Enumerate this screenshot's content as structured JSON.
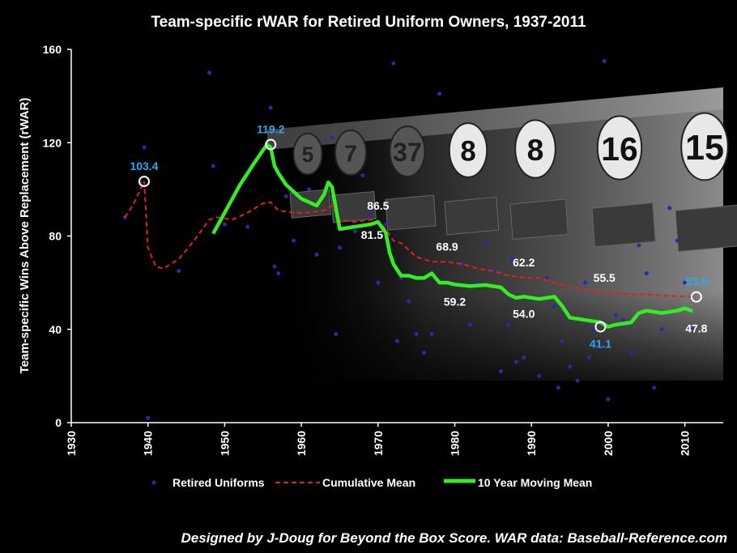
{
  "chart_data": {
    "type": "line",
    "title": "Team-specific rWAR for Retired Uniform Owners, 1937-2011",
    "xlabel": "",
    "ylabel": "Team-specific Wins Above Replacement (rWAR)",
    "xlim": [
      1930,
      2015
    ],
    "ylim": [
      0,
      160
    ],
    "x_ticks": [
      "1930",
      "1940",
      "1950",
      "1960",
      "1970",
      "1980",
      "1990",
      "2000",
      "2010"
    ],
    "y_ticks": [
      "0",
      "40",
      "80",
      "120",
      "160"
    ],
    "grid": false,
    "legend_position": "bottom",
    "colors": {
      "scatter": "#2a2aa8",
      "cumulative": "#e02020",
      "moving": "#33ee22",
      "blue_label": "#29aaf0"
    },
    "series": [
      {
        "name": "Retired Uniforms",
        "kind": "scatter",
        "x": [
          1937,
          1939.5,
          1939,
          1940,
          1944,
          1948,
          1948.5,
          1950,
          1953,
          1956,
          1956.5,
          1957,
          1958,
          1959,
          1961,
          1962,
          1964,
          1964.5,
          1965,
          1967,
          1968,
          1969,
          1970,
          1971,
          1972,
          1972.5,
          1973,
          1974,
          1975,
          1976,
          1977,
          1978,
          1979,
          1980,
          1981,
          1982,
          1983,
          1984,
          1985,
          1986,
          1987,
          1987.5,
          1988,
          1989,
          1990,
          1991,
          1992,
          1993,
          1993.5,
          1994,
          1995,
          1996,
          1997,
          1997.5,
          1998,
          1999,
          1999.5,
          2000,
          2001,
          2002,
          2003,
          2004,
          2005,
          2006,
          2007,
          2008,
          2009,
          2010,
          2011
        ],
        "y": [
          88,
          118,
          103,
          2,
          65,
          150,
          110,
          85,
          84,
          135,
          67,
          64,
          97,
          78,
          100,
          72,
          122,
          38,
          75,
          82,
          106,
          90,
          60,
          85,
          154,
          35,
          62,
          52,
          38,
          30,
          38,
          141,
          75,
          52,
          68,
          42,
          60,
          77,
          65,
          22,
          42,
          70,
          26,
          28,
          53,
          20,
          62,
          50,
          15,
          35,
          24,
          18,
          60,
          28,
          40,
          33,
          155,
          10,
          46,
          44,
          30,
          76,
          64,
          15,
          40,
          92,
          78,
          60,
          40
        ]
      },
      {
        "name": "Cumulative Mean",
        "kind": "line",
        "x": [
          1937,
          1938,
          1939.5,
          1940,
          1941,
          1942,
          1944,
          1946,
          1948,
          1949,
          1951,
          1953,
          1955,
          1956,
          1957,
          1959,
          1961,
          1963,
          1964,
          1965,
          1967,
          1969,
          1970,
          1971,
          1972,
          1973,
          1975,
          1976,
          1977,
          1979,
          1981,
          1983,
          1985,
          1987,
          1989,
          1991,
          1993,
          1995,
          1997,
          1999,
          2001,
          2003,
          2005,
          2007,
          2009,
          2011
        ],
        "y": [
          88,
          93,
          103.4,
          75,
          67,
          66,
          70,
          78,
          87,
          88,
          87,
          90,
          94,
          94.5,
          91,
          90,
          90,
          91,
          93,
          87,
          86,
          87,
          86.5,
          83,
          78,
          77,
          71,
          70,
          69,
          68.9,
          68,
          66,
          65,
          63,
          62.2,
          62,
          60,
          58,
          57,
          56,
          55.5,
          55,
          55,
          54.5,
          54.2,
          53.9
        ]
      },
      {
        "name": "10 Year Moving Mean",
        "kind": "line",
        "x": [
          1948.5,
          1950,
          1952,
          1954,
          1955.5,
          1956,
          1956.5,
          1957,
          1958,
          1960,
          1962,
          1963,
          1963.5,
          1964,
          1965,
          1967,
          1969,
          1970,
          1971,
          1971.5,
          1972,
          1973,
          1974,
          1975,
          1976,
          1977,
          1978,
          1979,
          1980,
          1982,
          1984,
          1986,
          1987,
          1988,
          1989,
          1991,
          1993,
          1994,
          1995,
          1997,
          1999,
          2000,
          2001,
          2003,
          2004,
          2005,
          2007,
          2009,
          2010,
          2011
        ],
        "y": [
          81,
          90,
          102,
          112,
          119.2,
          118,
          110,
          107,
          102,
          96,
          93,
          98,
          103,
          101,
          83,
          84,
          85,
          86,
          81.5,
          73,
          68,
          63,
          63,
          62,
          62,
          64,
          60,
          60,
          59.2,
          58.5,
          59,
          58,
          55,
          53.5,
          54,
          53,
          54,
          50,
          45,
          44,
          43,
          41.1,
          42,
          43,
          47,
          48,
          47,
          48,
          49,
          47.8
        ]
      }
    ],
    "annotations": [
      {
        "x": 1939.5,
        "y": 103.4,
        "text": "103.4",
        "circle": true,
        "color": "blue",
        "pos": "above"
      },
      {
        "x": 1956,
        "y": 119.2,
        "text": "119.2",
        "circle": true,
        "color": "blue",
        "pos": "above"
      },
      {
        "x": 1970,
        "y": 86.5,
        "text": "86.5",
        "circle": false,
        "color": "white",
        "pos": "above"
      },
      {
        "x": 1971.5,
        "y": 81.5,
        "text": "81.5",
        "circle": false,
        "color": "white",
        "pos": "left"
      },
      {
        "x": 1979,
        "y": 68.9,
        "text": "68.9",
        "circle": false,
        "color": "white",
        "pos": "above"
      },
      {
        "x": 1980,
        "y": 59.2,
        "text": "59.2",
        "circle": false,
        "color": "white",
        "pos": "below"
      },
      {
        "x": 1989,
        "y": 62.2,
        "text": "62.2",
        "circle": false,
        "color": "white",
        "pos": "above"
      },
      {
        "x": 1989,
        "y": 54.0,
        "text": "54.0",
        "circle": false,
        "color": "white",
        "pos": "below"
      },
      {
        "x": 1999.5,
        "y": 55.5,
        "text": "55.5",
        "circle": false,
        "color": "white",
        "pos": "above"
      },
      {
        "x": 2011.5,
        "y": 53.9,
        "text": "53.9",
        "circle": true,
        "color": "blue",
        "pos": "above"
      },
      {
        "x": 1999,
        "y": 41.1,
        "text": "41.1",
        "circle": true,
        "color": "blue",
        "pos": "below"
      },
      {
        "x": 2011.5,
        "y": 47.8,
        "text": "47.8",
        "circle": false,
        "color": "white",
        "pos": "below"
      }
    ]
  },
  "background": {
    "plaques": [
      "5",
      "7",
      "37",
      "8",
      "8",
      "16",
      "15"
    ]
  },
  "legend": {
    "scatter_label": "Retired Uniforms",
    "cumulative_label": "Cumulative Mean",
    "moving_label": "10 Year Moving Mean"
  },
  "credit": "Designed by J-Doug for Beyond the Box Score.   WAR data: Baseball-Reference.com"
}
